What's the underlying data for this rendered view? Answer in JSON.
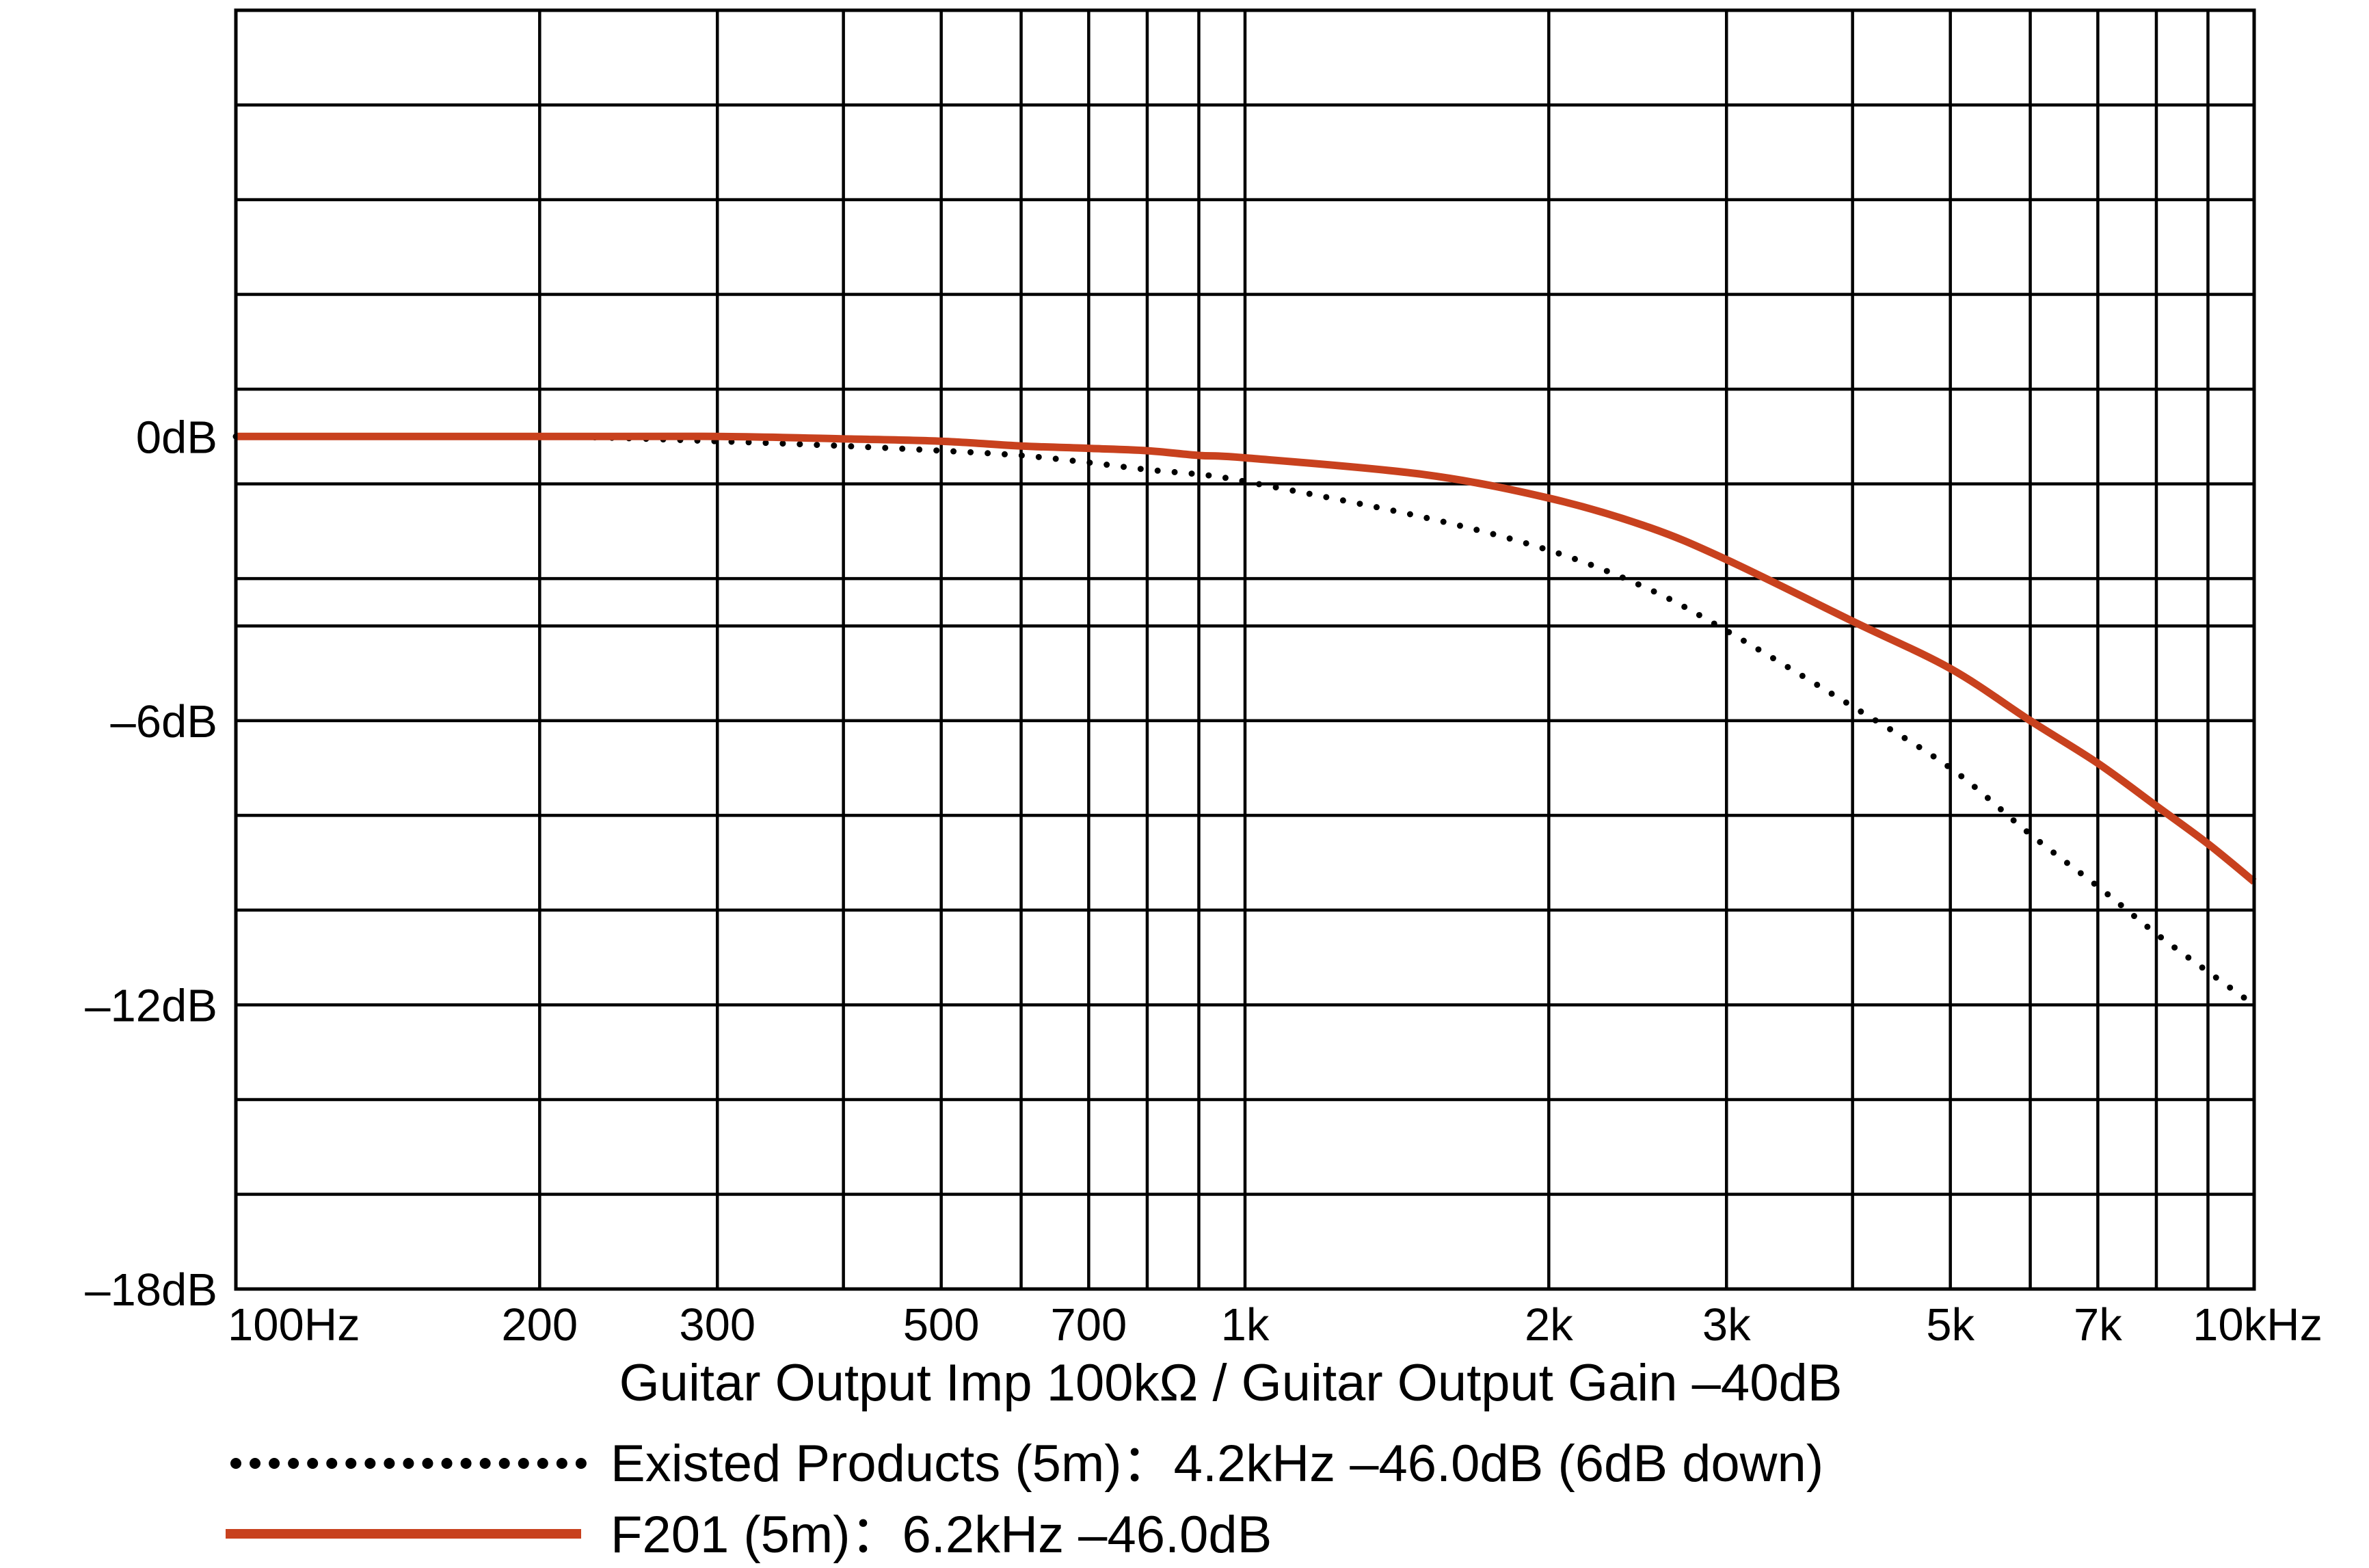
{
  "chart_data": {
    "type": "line",
    "xlabel": "Guitar Output Imp 100kΩ / Guitar Output Gain –40dB",
    "x_scale": "log",
    "xlim": [
      100,
      10000
    ],
    "ylim": [
      -18,
      9
    ],
    "x_ticks": [
      {
        "value": 100,
        "label": "100Hz"
      },
      {
        "value": 200,
        "label": "200"
      },
      {
        "value": 300,
        "label": "300"
      },
      {
        "value": 500,
        "label": "500"
      },
      {
        "value": 700,
        "label": "700"
      },
      {
        "value": 1000,
        "label": "1k"
      },
      {
        "value": 2000,
        "label": "2k"
      },
      {
        "value": 3000,
        "label": "3k"
      },
      {
        "value": 5000,
        "label": "5k"
      },
      {
        "value": 7000,
        "label": "7k"
      },
      {
        "value": 10000,
        "label": "10kHz"
      }
    ],
    "x_gridlines": [
      100,
      200,
      300,
      400,
      500,
      600,
      700,
      800,
      900,
      1000,
      2000,
      3000,
      4000,
      5000,
      6000,
      7000,
      8000,
      9000,
      10000
    ],
    "y_ticks": [
      {
        "value": 0,
        "label": "0dB"
      },
      {
        "value": -6,
        "label": "–6dB"
      },
      {
        "value": -12,
        "label": "–12dB"
      },
      {
        "value": -18,
        "label": "–18dB"
      }
    ],
    "y_gridlines": [
      9,
      7,
      5,
      3,
      1,
      -1,
      -3,
      -4,
      -6,
      -8,
      -10,
      -12,
      -14,
      -16,
      -18
    ],
    "grid": true,
    "legend_position": "bottom",
    "series": [
      {
        "name": "Existed Products (5m)：4.2kHz –46.0dB (6dB down)",
        "style": "dotted",
        "color": "#000000",
        "x": [
          100,
          200,
          300,
          400,
          500,
          600,
          700,
          800,
          900,
          1000,
          1500,
          2000,
          2500,
          3000,
          4000,
          5000,
          6000,
          7000,
          8000,
          9000,
          10000
        ],
        "y": [
          0,
          0,
          -0.1,
          -0.2,
          -0.3,
          -0.4,
          -0.55,
          -0.7,
          -0.8,
          -0.95,
          -1.7,
          -2.4,
          -3.2,
          -4.1,
          -5.7,
          -7.0,
          -8.4,
          -9.5,
          -10.5,
          -11.3,
          -12.0
        ]
      },
      {
        "name": "F201 (5m)：6.2kHz –46.0dB",
        "style": "solid",
        "color": "#C8411E",
        "x": [
          100,
          200,
          300,
          400,
          500,
          600,
          700,
          800,
          900,
          1000,
          1500,
          2000,
          2500,
          3000,
          4000,
          5000,
          6000,
          7000,
          8000,
          9000,
          10000
        ],
        "y": [
          0,
          0,
          0,
          -0.05,
          -0.1,
          -0.2,
          -0.25,
          -0.3,
          -0.4,
          -0.45,
          -0.8,
          -1.3,
          -1.9,
          -2.6,
          -3.9,
          -4.9,
          -6.0,
          -6.9,
          -7.8,
          -8.6,
          -9.4
        ]
      }
    ]
  }
}
